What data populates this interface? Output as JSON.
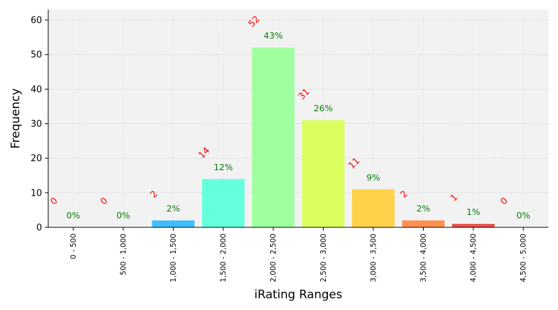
{
  "chart_data": {
    "type": "bar",
    "xlabel": "iRating Ranges",
    "ylabel": "Frequency",
    "ylim": [
      0,
      63
    ],
    "yticks": [
      0,
      10,
      20,
      30,
      40,
      50,
      60
    ],
    "grid": true,
    "categories": [
      "0 - 500",
      "500 - 1,000",
      "1,000 - 1,500",
      "1,500 - 2,000",
      "2,000 - 2,500",
      "2,500 - 3,000",
      "3,000 - 3,500",
      "3,500 - 4,000",
      "4,000 - 4,500",
      "4,500 - 5,000"
    ],
    "values": [
      0,
      0,
      2,
      14,
      52,
      31,
      11,
      2,
      1,
      0
    ],
    "count_labels": [
      "0",
      "0",
      "2",
      "14",
      "52",
      "31",
      "11",
      "2",
      "1",
      "0"
    ],
    "percent_labels": [
      "0%",
      "0%",
      "2%",
      "12%",
      "43%",
      "26%",
      "9%",
      "2%",
      "1%",
      "0%"
    ],
    "colors": [
      "#4a4ae8",
      "#3f7bff",
      "#3fbfff",
      "#66ffdd",
      "#a0ff9e",
      "#daff5e",
      "#ffd24a",
      "#ff9050",
      "#e8524a",
      "#b01818"
    ],
    "count_label_color": "#ff0000",
    "percent_label_color": "#008000",
    "plot_background": "#f2f2f2"
  }
}
